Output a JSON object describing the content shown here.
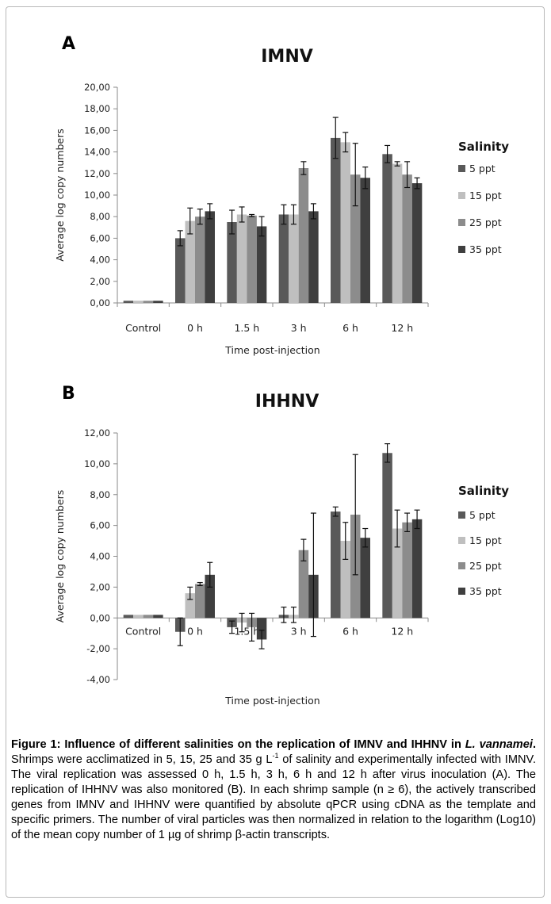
{
  "chart_data": [
    {
      "type": "bar",
      "panel_letter": "A",
      "title": "IMNV",
      "xlabel": "Time post-injection",
      "ylabel": "Average log copy numbers",
      "ylim": [
        0,
        20
      ],
      "yticks": [
        "0,00",
        "2,00",
        "4,00",
        "6,00",
        "8,00",
        "10,00",
        "12,00",
        "14,00",
        "16,00",
        "18,00",
        "20,00"
      ],
      "categories": [
        "Control",
        "0 h",
        "1.5 h",
        "3 h",
        "6 h",
        "12 h"
      ],
      "legend_title": "Salinity",
      "legend_position": "right",
      "series": [
        {
          "name": "5 ppt",
          "color": "#595959",
          "values": [
            0.2,
            6.0,
            7.5,
            8.2,
            15.3,
            13.8
          ],
          "errors": [
            0.0,
            0.7,
            1.1,
            0.9,
            1.9,
            0.8
          ]
        },
        {
          "name": "15 ppt",
          "color": "#bfbfbf",
          "values": [
            0.2,
            7.6,
            8.2,
            8.2,
            14.9,
            12.9
          ],
          "errors": [
            0.0,
            1.2,
            0.7,
            0.9,
            0.9,
            0.2
          ]
        },
        {
          "name": "25 ppt",
          "color": "#8c8c8c",
          "values": [
            0.2,
            8.0,
            8.1,
            12.5,
            11.9,
            11.9
          ],
          "errors": [
            0.0,
            0.7,
            0.1,
            0.6,
            2.9,
            1.2
          ]
        },
        {
          "name": "35 ppt",
          "color": "#3f3f3f",
          "values": [
            0.2,
            8.5,
            7.1,
            8.5,
            11.6,
            11.1
          ],
          "errors": [
            0.0,
            0.7,
            0.9,
            0.7,
            1.0,
            0.5
          ]
        }
      ]
    },
    {
      "type": "bar",
      "panel_letter": "B",
      "title": "IHHNV",
      "xlabel": "Time post-injection",
      "ylabel": "Average log copy numbers",
      "ylim": [
        -4,
        12
      ],
      "yticks": [
        "-4,00",
        "-2,00",
        "0,00",
        "2,00",
        "4,00",
        "6,00",
        "8,00",
        "10,00",
        "12,00"
      ],
      "categories": [
        "Control",
        "0 h",
        "1.5 h",
        "3 h",
        "6 h",
        "12 h"
      ],
      "legend_title": "Salinity",
      "legend_position": "right",
      "series": [
        {
          "name": "5 ppt",
          "color": "#595959",
          "values": [
            0.2,
            -0.9,
            -0.6,
            0.2,
            6.9,
            10.7
          ],
          "errors": [
            0.0,
            0.9,
            0.4,
            0.5,
            0.3,
            0.6
          ]
        },
        {
          "name": "15 ppt",
          "color": "#bfbfbf",
          "values": [
            0.2,
            1.6,
            -0.3,
            0.2,
            5.0,
            5.8
          ],
          "errors": [
            0.0,
            0.4,
            0.6,
            0.5,
            1.2,
            1.2
          ]
        },
        {
          "name": "25 ppt",
          "color": "#8c8c8c",
          "values": [
            0.2,
            2.2,
            -0.6,
            4.4,
            6.7,
            6.2
          ],
          "errors": [
            0.0,
            0.1,
            0.9,
            0.7,
            3.9,
            0.6
          ]
        },
        {
          "name": "35 ppt",
          "color": "#3f3f3f",
          "values": [
            0.2,
            2.8,
            -1.4,
            2.8,
            5.2,
            6.4
          ],
          "errors": [
            0.0,
            0.8,
            0.6,
            4.0,
            0.6,
            0.6
          ]
        }
      ]
    }
  ],
  "caption": {
    "label": "Figure 1:",
    "title_part1": " Influence of different salinities on the replication of IMNV and IHHNV in ",
    "species": "L. vannamei",
    "title_end": ".",
    "body_part1": " Shrimps were acclimatized in 5, 15, 25 and 35 g L",
    "superscript": "-1",
    "body_part2": " of salinity and experimentally infected with IMNV. The viral replication was assessed 0 h, 1.5 h, 3 h, 6 h and 12 h after virus inoculation (A). The replication of IHHNV was also monitored (B). In each shrimp sample (n ≥ 6), the actively transcribed genes from IMNV and IHHNV were quantified by absolute qPCR using cDNA as the template and specific primers. The number of viral particles was then normalized in relation to the logarithm (Log10) of the mean copy number of 1 µg of shrimp β-actin transcripts."
  }
}
